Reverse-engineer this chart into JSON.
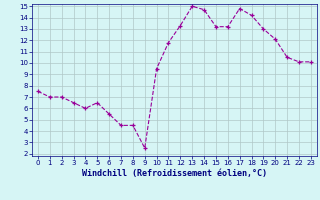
{
  "x": [
    0,
    1,
    2,
    3,
    4,
    5,
    6,
    7,
    8,
    9,
    10,
    11,
    12,
    13,
    14,
    15,
    16,
    17,
    18,
    19,
    20,
    21,
    22,
    23
  ],
  "y": [
    7.5,
    7.0,
    7.0,
    6.5,
    6.0,
    6.5,
    5.5,
    4.5,
    4.5,
    2.5,
    9.5,
    11.8,
    13.3,
    15.0,
    14.7,
    13.2,
    13.2,
    14.8,
    14.2,
    13.0,
    12.1,
    10.5,
    10.1,
    10.1
  ],
  "xlabel": "Windchill (Refroidissement éolien,°C)",
  "ylim_min": 2,
  "ylim_max": 15,
  "xlim_min": -0.5,
  "xlim_max": 23.5,
  "yticks": [
    2,
    3,
    4,
    5,
    6,
    7,
    8,
    9,
    10,
    11,
    12,
    13,
    14,
    15
  ],
  "xticks": [
    0,
    1,
    2,
    3,
    4,
    5,
    6,
    7,
    8,
    9,
    10,
    11,
    12,
    13,
    14,
    15,
    16,
    17,
    18,
    19,
    20,
    21,
    22,
    23
  ],
  "line_color": "#990099",
  "marker": "+",
  "bg_color": "#d6f5f5",
  "grid_color": "#b0c8c8",
  "font_color": "#000080",
  "tick_fontsize": 5,
  "xlabel_fontsize": 6
}
